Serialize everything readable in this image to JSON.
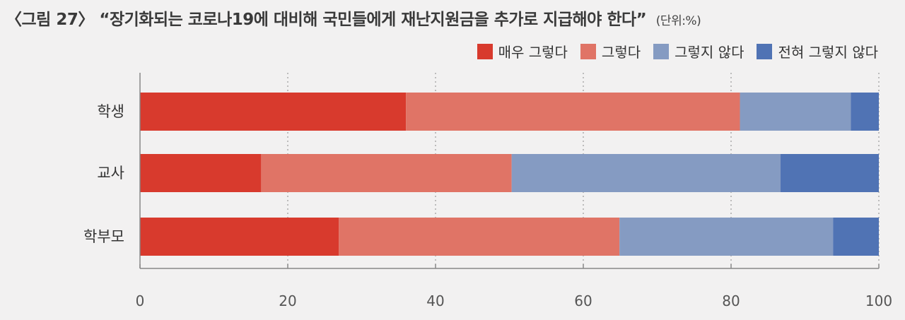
{
  "chart_data": {
    "type": "bar",
    "orientation": "horizontal",
    "stacked": true,
    "title_prefix": "〈그림 27〉",
    "title": "“장기화되는 코로나19에 대비해 국민들에게 재난지원금을 추가로 지급해야 한다”",
    "unit": "(단위:%)",
    "categories": [
      "학생",
      "교사",
      "학부모"
    ],
    "series": [
      {
        "name": "매우 그렇다",
        "color": "#d83a2d",
        "values": [
          36.0,
          16.4,
          26.9
        ]
      },
      {
        "name": "그렇다",
        "color": "#e07466",
        "values": [
          45.2,
          33.9,
          38.0
        ]
      },
      {
        "name": "그렇지 않다",
        "color": "#859bc2",
        "values": [
          15.0,
          36.4,
          28.9
        ]
      },
      {
        "name": "전혀 그렇지 않다",
        "color": "#5073b4",
        "values": [
          3.8,
          13.3,
          6.2
        ]
      }
    ],
    "xlim": [
      0,
      100
    ],
    "xticks": [
      "0",
      "20",
      "40",
      "60",
      "80",
      "100"
    ],
    "grid": "vertical-dotted",
    "legend_position": "top-right"
  }
}
